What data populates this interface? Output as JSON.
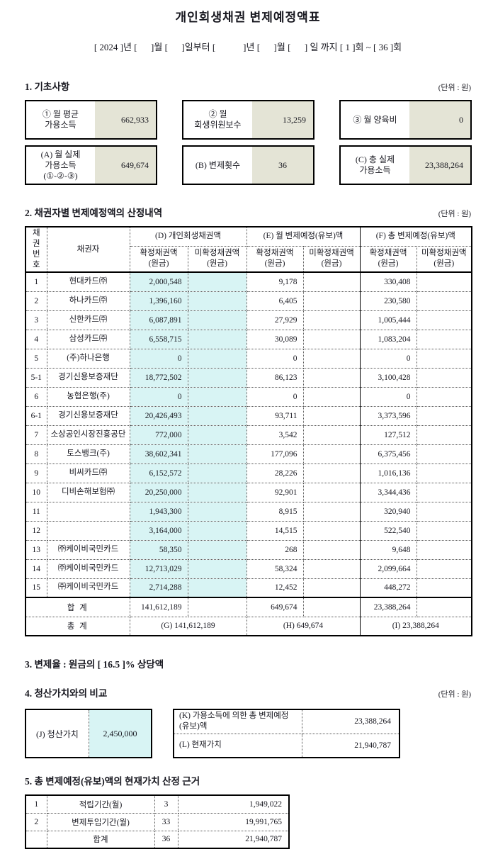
{
  "title": "개인회생채권 변제예정액표",
  "period_line": "[ 2024 ]년 [      ]월 [      ]일부터 [            ]년 [      ]월 [      ] 일 까지 [ 1 ]회 ~ [ 36 ]회",
  "section1": {
    "heading": "1. 기초사항",
    "unit": "(단위 : 원)",
    "boxes": [
      {
        "label": "① 월 평균\n가용소득",
        "value": "662,933"
      },
      {
        "label": "② 월\n회생위원보수",
        "value": "13,259"
      },
      {
        "label": "③ 월 양육비",
        "value": "0"
      },
      {
        "label": "(A) 월 실제\n가용소득\n(①-②-③)",
        "value": "649,674"
      },
      {
        "label": "(B) 변제횟수",
        "value": "36"
      },
      {
        "label": "(C) 총 실제\n가용소득",
        "value": "23,388,264"
      }
    ]
  },
  "section2": {
    "heading": "2. 채권자별 변제예정액의 산정내역",
    "unit": "(단위 : 원)"
  },
  "table": {
    "col_no": "채권\n번호",
    "col_creditor": "채권자",
    "groups": [
      {
        "label": "(D) 개인회생채권액"
      },
      {
        "label": "(E) 월 변제예정(유보)액"
      },
      {
        "label": "(F) 총 변제예정(유보)액"
      }
    ],
    "sub_fixed": "확정채권액\n(원금)",
    "sub_unfixed": "미확정채권액\n(원금)",
    "rows": [
      {
        "no": "1",
        "name": "현대카드㈜",
        "d_fixed": "2,000,548",
        "d_unfixed": "",
        "e_fixed": "9,178",
        "e_unfixed": "",
        "f_fixed": "330,408",
        "f_unfixed": ""
      },
      {
        "no": "2",
        "name": "하나카드㈜",
        "d_fixed": "1,396,160",
        "d_unfixed": "",
        "e_fixed": "6,405",
        "e_unfixed": "",
        "f_fixed": "230,580",
        "f_unfixed": ""
      },
      {
        "no": "3",
        "name": "신한카드㈜",
        "d_fixed": "6,087,891",
        "d_unfixed": "",
        "e_fixed": "27,929",
        "e_unfixed": "",
        "f_fixed": "1,005,444",
        "f_unfixed": ""
      },
      {
        "no": "4",
        "name": "삼성카드㈜",
        "d_fixed": "6,558,715",
        "d_unfixed": "",
        "e_fixed": "30,089",
        "e_unfixed": "",
        "f_fixed": "1,083,204",
        "f_unfixed": ""
      },
      {
        "no": "5",
        "name": "(주)하나은행",
        "d_fixed": "0",
        "d_unfixed": "",
        "e_fixed": "0",
        "e_unfixed": "",
        "f_fixed": "0",
        "f_unfixed": ""
      },
      {
        "no": "5-1",
        "name": "경기신용보증재단",
        "d_fixed": "18,772,502",
        "d_unfixed": "",
        "e_fixed": "86,123",
        "e_unfixed": "",
        "f_fixed": "3,100,428",
        "f_unfixed": ""
      },
      {
        "no": "6",
        "name": "농협은행(주)",
        "d_fixed": "0",
        "d_unfixed": "",
        "e_fixed": "0",
        "e_unfixed": "",
        "f_fixed": "0",
        "f_unfixed": ""
      },
      {
        "no": "6-1",
        "name": "경기신용보증재단",
        "d_fixed": "20,426,493",
        "d_unfixed": "",
        "e_fixed": "93,711",
        "e_unfixed": "",
        "f_fixed": "3,373,596",
        "f_unfixed": ""
      },
      {
        "no": "7",
        "name": "소상공인시장진흥공단",
        "d_fixed": "772,000",
        "d_unfixed": "",
        "e_fixed": "3,542",
        "e_unfixed": "",
        "f_fixed": "127,512",
        "f_unfixed": ""
      },
      {
        "no": "8",
        "name": "토스뱅크(주)",
        "d_fixed": "38,602,341",
        "d_unfixed": "",
        "e_fixed": "177,096",
        "e_unfixed": "",
        "f_fixed": "6,375,456",
        "f_unfixed": ""
      },
      {
        "no": "9",
        "name": "비씨카드㈜",
        "d_fixed": "6,152,572",
        "d_unfixed": "",
        "e_fixed": "28,226",
        "e_unfixed": "",
        "f_fixed": "1,016,136",
        "f_unfixed": ""
      },
      {
        "no": "10",
        "name": "디비손해보험㈜",
        "d_fixed": "20,250,000",
        "d_unfixed": "",
        "e_fixed": "92,901",
        "e_unfixed": "",
        "f_fixed": "3,344,436",
        "f_unfixed": ""
      },
      {
        "no": "11",
        "name": "",
        "d_fixed": "1,943,300",
        "d_unfixed": "",
        "e_fixed": "8,915",
        "e_unfixed": "",
        "f_fixed": "320,940",
        "f_unfixed": ""
      },
      {
        "no": "12",
        "name": "",
        "d_fixed": "3,164,000",
        "d_unfixed": "",
        "e_fixed": "14,515",
        "e_unfixed": "",
        "f_fixed": "522,540",
        "f_unfixed": ""
      },
      {
        "no": "13",
        "name": "㈜케이비국민카드",
        "d_fixed": "58,350",
        "d_unfixed": "",
        "e_fixed": "268",
        "e_unfixed": "",
        "f_fixed": "9,648",
        "f_unfixed": ""
      },
      {
        "no": "14",
        "name": "㈜케이비국민카드",
        "d_fixed": "12,713,029",
        "d_unfixed": "",
        "e_fixed": "58,324",
        "e_unfixed": "",
        "f_fixed": "2,099,664",
        "f_unfixed": ""
      },
      {
        "no": "15",
        "name": "㈜케이비국민카드",
        "d_fixed": "2,714,288",
        "d_unfixed": "",
        "e_fixed": "12,452",
        "e_unfixed": "",
        "f_fixed": "448,272",
        "f_unfixed": ""
      }
    ],
    "sum_row": {
      "label": "합 계",
      "d_fixed": "141,612,189",
      "d_unfixed": "",
      "e_fixed": "649,674",
      "e_unfixed": "",
      "f_fixed": "23,388,264",
      "f_unfixed": ""
    },
    "total_row": {
      "label": "총 계",
      "d": "(G) 141,612,189",
      "e": "(H) 649,674",
      "f": "(I) 23,388,264"
    }
  },
  "section3": {
    "heading": "3. 변제율 : 원금의 [ 16.5 ]% 상당액"
  },
  "section4": {
    "heading": "4. 청산가치와의 비교",
    "unit": "(단위 : 원)",
    "j_box": {
      "label": "(J) 청산가치",
      "value": "2,450,000"
    },
    "kl_rows": [
      {
        "label": "(K) 가용소득에 의한 총 변제예정(유보)액",
        "value": "23,388,264"
      },
      {
        "label": "(L) 현재가치",
        "value": "21,940,787"
      }
    ]
  },
  "section5": {
    "heading": "5. 총 변제예정(유보)액의 현재가치 산정 근거",
    "rows": [
      {
        "no": "1",
        "label": "적립기간(월)",
        "count": "3",
        "value": "1,949,022"
      },
      {
        "no": "2",
        "label": "변제투입기간(월)",
        "count": "33",
        "value": "19,991,765"
      },
      {
        "no": "",
        "label": "합계",
        "count": "36",
        "value": "21,940,787"
      }
    ]
  }
}
